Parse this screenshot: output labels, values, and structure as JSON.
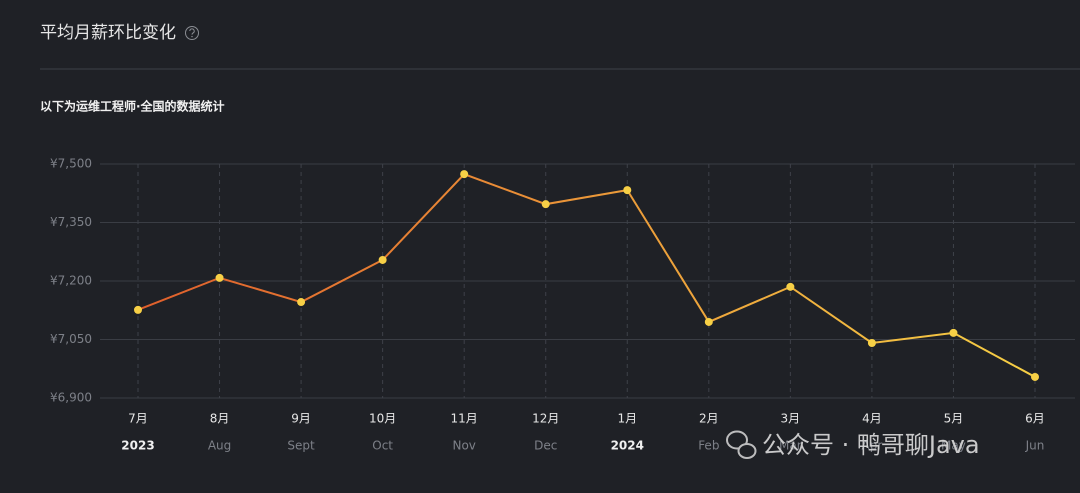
{
  "chart_data": {
    "type": "line",
    "title": "平均月薪环比变化",
    "subtitle": "以下为运维工程师·全国的数据统计",
    "categories": [
      "7月",
      "8月",
      "9月",
      "10月",
      "11月",
      "12月",
      "1月",
      "2月",
      "3月",
      "4月",
      "5月",
      "6月"
    ],
    "sub_categories": [
      "2023",
      "Aug",
      "Sept",
      "Oct",
      "Nov",
      "Dec",
      "2024",
      "Feb",
      "Mar",
      "Apr",
      "May",
      "Jun"
    ],
    "series": [
      {
        "values": [
          7126,
          7208,
          7146,
          7254,
          7474,
          7397,
          7433,
          7095,
          7185,
          7041,
          7067,
          6954
        ],
        "color": [
          "#e05f2c",
          "#f6cf45"
        ],
        "marker_color": "#f7d046"
      }
    ],
    "ylim": [
      6900,
      7500
    ],
    "yticks": [
      {
        "value": 6900,
        "label": "¥6,900"
      },
      {
        "value": 7050,
        "label": "¥7,050"
      },
      {
        "value": 7200,
        "label": "¥7,200"
      },
      {
        "value": 7350,
        "label": "¥7,350"
      },
      {
        "value": 7500,
        "label": "¥7,500"
      }
    ],
    "grid": true,
    "watermark": "公众号 · 鸭哥聊Java"
  }
}
